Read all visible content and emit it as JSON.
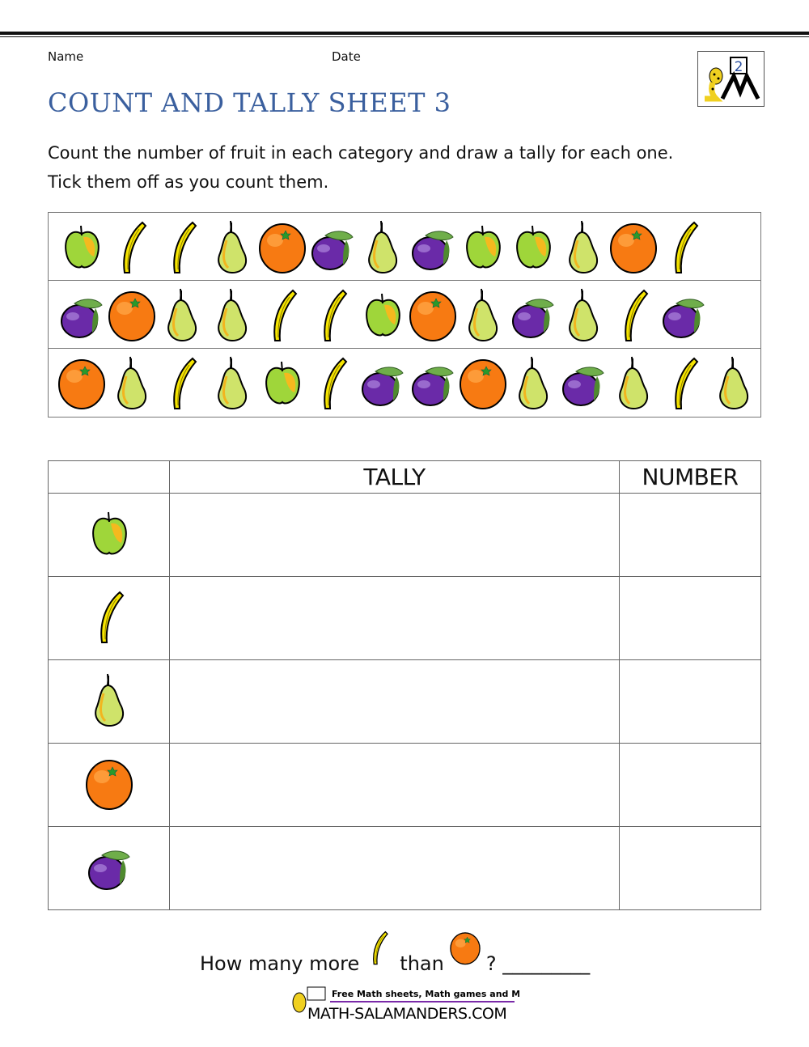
{
  "header": {
    "name_label": "Name",
    "date_label": "Date",
    "title": "COUNT AND TALLY SHEET 3",
    "logo_grade": "2"
  },
  "instructions": [
    "Count the number of fruit in each category and draw a tally for each one.",
    "Tick them off as you count them."
  ],
  "fruit_rows": [
    [
      "apple",
      "banana",
      "banana",
      "pear",
      "orange",
      "plum",
      "pear",
      "plum",
      "apple",
      "apple",
      "pear",
      "orange",
      "banana"
    ],
    [
      "plum",
      "orange",
      "pear",
      "pear",
      "banana",
      "banana",
      "apple",
      "orange",
      "pear",
      "plum",
      "pear",
      "banana",
      "plum"
    ],
    [
      "orange",
      "pear",
      "banana",
      "pear",
      "apple",
      "banana",
      "plum",
      "plum",
      "orange",
      "pear",
      "plum",
      "pear",
      "banana",
      "pear"
    ]
  ],
  "table": {
    "headers": [
      "",
      "TALLY",
      "NUMBER"
    ],
    "rows": [
      {
        "fruit": "apple",
        "tally": "",
        "number": ""
      },
      {
        "fruit": "banana",
        "tally": "",
        "number": ""
      },
      {
        "fruit": "pear",
        "tally": "",
        "number": ""
      },
      {
        "fruit": "orange",
        "tally": "",
        "number": ""
      },
      {
        "fruit": "plum",
        "tally": "",
        "number": ""
      }
    ]
  },
  "question": {
    "part1": "How many more",
    "fruit1": "banana",
    "part2": "than",
    "fruit2": "orange",
    "part3": "? _________"
  },
  "footer": {
    "tagline": "Free Math sheets, Math games and Math help",
    "site": "MATH-SALAMANDERS.COM"
  },
  "colors": {
    "title": "#3a5f9e",
    "apple": "#9fd63a",
    "banana": "#f5e400",
    "pear": "#cfe36a",
    "orange": "#f77a12",
    "plum": "#6a2aa8"
  }
}
